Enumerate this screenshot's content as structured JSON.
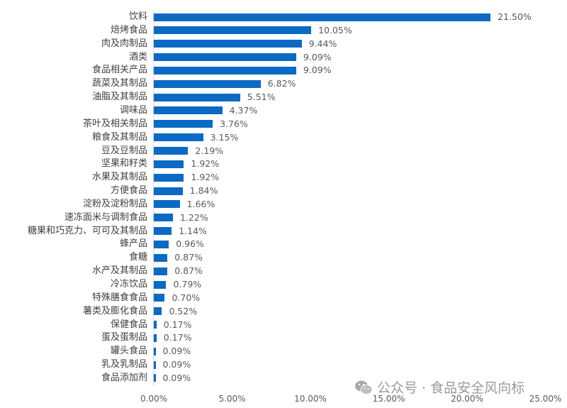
{
  "chart_data": {
    "type": "bar",
    "orientation": "horizontal",
    "title": "",
    "xlabel": "",
    "ylabel": "",
    "xlim": [
      0,
      25
    ],
    "x_ticks": [
      "0.00%",
      "5.00%",
      "10.00%",
      "15.00%",
      "20.00%",
      "25.00%"
    ],
    "grid": false,
    "legend": null,
    "bar_color": "#0a6ac4",
    "categories": [
      "饮料",
      "焙烤食品",
      "肉及肉制品",
      "酒类",
      "食品相关产品",
      "蔬菜及其制品",
      "油脂及其制品",
      "调味品",
      "茶叶及相关制品",
      "粮食及其制品",
      "豆及豆制品",
      "坚果和籽类",
      "水果及其制品",
      "方便食品",
      "淀粉及淀粉制品",
      "速冻面米与调制食品",
      "糖果和巧克力、可可及其制品",
      "蜂产品",
      "食糖",
      "水产及其制品",
      "冷冻饮品",
      "特殊膳食食品",
      "薯类及膨化食品",
      "保健食品",
      "蛋及蛋制品",
      "罐头食品",
      "乳及乳制品",
      "食品添加剂"
    ],
    "values": [
      21.5,
      10.05,
      9.44,
      9.09,
      9.09,
      6.82,
      5.51,
      4.37,
      3.76,
      3.15,
      2.19,
      1.92,
      1.92,
      1.84,
      1.66,
      1.22,
      1.14,
      0.96,
      0.87,
      0.87,
      0.79,
      0.7,
      0.52,
      0.17,
      0.17,
      0.09,
      0.09,
      0.09
    ],
    "value_labels": [
      "21.50%",
      "10.05%",
      "9.44%",
      "9.09%",
      "9.09%",
      "6.82%",
      "5.51%",
      "4.37%",
      "3.76%",
      "3.15%",
      "2.19%",
      "1.92%",
      "1.92%",
      "1.84%",
      "1.66%",
      "1.22%",
      "1.14%",
      "0.96%",
      "0.87%",
      "0.87%",
      "0.79%",
      "0.70%",
      "0.52%",
      "0.17%",
      "0.17%",
      "0.09%",
      "0.09%",
      "0.09%"
    ]
  },
  "watermark": {
    "icon": "wechat-icon",
    "text": "公众号 · 食品安全风向标"
  }
}
